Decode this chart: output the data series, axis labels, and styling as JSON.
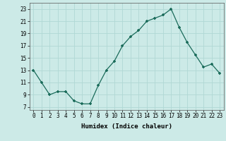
{
  "x": [
    0,
    1,
    2,
    3,
    4,
    5,
    6,
    7,
    8,
    9,
    10,
    11,
    12,
    13,
    14,
    15,
    16,
    17,
    18,
    19,
    20,
    21,
    22,
    23
  ],
  "y": [
    13,
    11,
    9,
    9.5,
    9.5,
    8,
    7.5,
    7.5,
    10.5,
    13,
    14.5,
    17,
    18.5,
    19.5,
    21,
    21.5,
    22,
    23,
    20,
    17.5,
    15.5,
    13.5,
    14,
    12.5
  ],
  "xlabel": "Humidex (Indice chaleur)",
  "xlim": [
    -0.5,
    23.5
  ],
  "ylim": [
    6.5,
    24
  ],
  "yticks": [
    7,
    9,
    11,
    13,
    15,
    17,
    19,
    21,
    23
  ],
  "xticks": [
    0,
    1,
    2,
    3,
    4,
    5,
    6,
    7,
    8,
    9,
    10,
    11,
    12,
    13,
    14,
    15,
    16,
    17,
    18,
    19,
    20,
    21,
    22,
    23
  ],
  "line_color": "#1a6b5a",
  "marker_color": "#1a6b5a",
  "bg_color": "#cceae7",
  "grid_color": "#b0d8d4",
  "label_fontsize": 6.5,
  "tick_fontsize": 5.5
}
